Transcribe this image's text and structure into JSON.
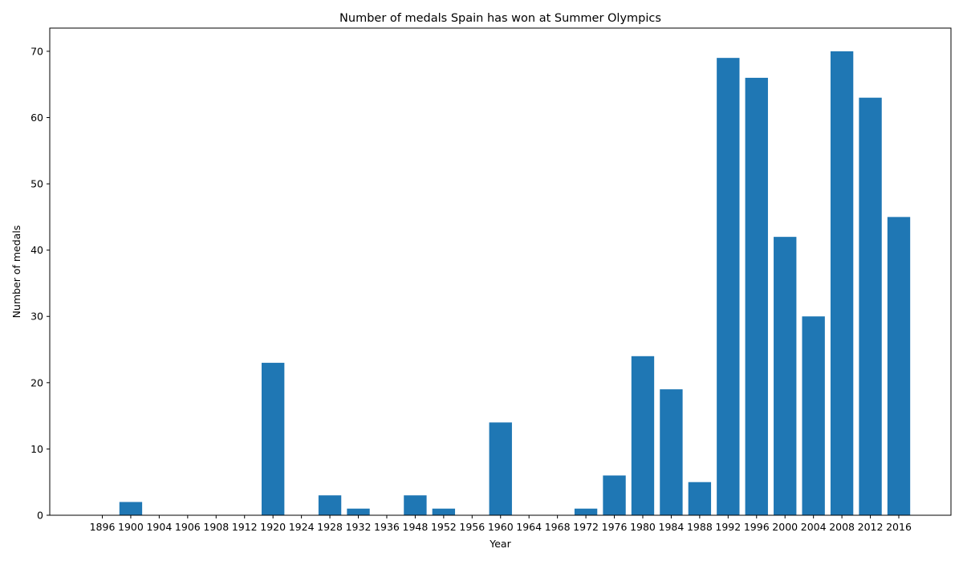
{
  "chart_data": {
    "type": "bar",
    "title": "Number of medals Spain has won at Summer Olympics",
    "xlabel": "Year",
    "ylabel": "Number of medals",
    "categories": [
      "1896",
      "1900",
      "1904",
      "1906",
      "1908",
      "1912",
      "1920",
      "1924",
      "1928",
      "1932",
      "1936",
      "1948",
      "1952",
      "1956",
      "1960",
      "1964",
      "1968",
      "1972",
      "1976",
      "1980",
      "1984",
      "1988",
      "1992",
      "1996",
      "2000",
      "2004",
      "2008",
      "2012",
      "2016"
    ],
    "values": [
      0,
      2,
      0,
      0,
      0,
      0,
      23,
      0,
      3,
      1,
      0,
      3,
      1,
      0,
      14,
      0,
      0,
      1,
      6,
      24,
      19,
      5,
      69,
      66,
      42,
      30,
      70,
      63,
      45
    ],
    "yticks": [
      0,
      10,
      20,
      30,
      40,
      50,
      60,
      70
    ],
    "ylim": [
      0,
      73.5
    ],
    "grid": false,
    "bar_color": "#1f77b4"
  }
}
